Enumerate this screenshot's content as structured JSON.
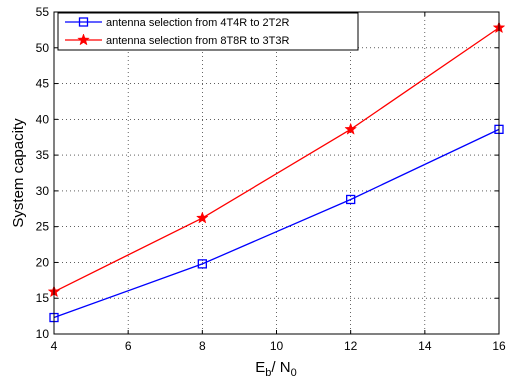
{
  "chart_data": {
    "type": "line",
    "title": "",
    "xlabel": {
      "main": "E",
      "sub1": "b",
      "mid": "/ N",
      "sub2": "0"
    },
    "ylabel": "System capacity",
    "xlim": [
      4,
      16
    ],
    "ylim": [
      10,
      55
    ],
    "xticks": [
      "4",
      "6",
      "8",
      "10",
      "12",
      "14",
      "16"
    ],
    "yticks": [
      "10",
      "15",
      "20",
      "25",
      "30",
      "35",
      "40",
      "45",
      "50",
      "55"
    ],
    "grid": true,
    "legend_position": "top-left",
    "series": [
      {
        "name": "antenna selection from 4T4R to 2T2R",
        "color": "#0000ff",
        "marker": "square",
        "x": [
          4,
          8,
          12,
          16
        ],
        "y": [
          12.3,
          19.8,
          28.8,
          38.6
        ]
      },
      {
        "name": "antenna selection from 8T8R to 3T3R",
        "color": "#ff0000",
        "marker": "star",
        "x": [
          4,
          8,
          12,
          16
        ],
        "y": [
          15.9,
          26.2,
          38.6,
          52.8
        ]
      }
    ]
  }
}
